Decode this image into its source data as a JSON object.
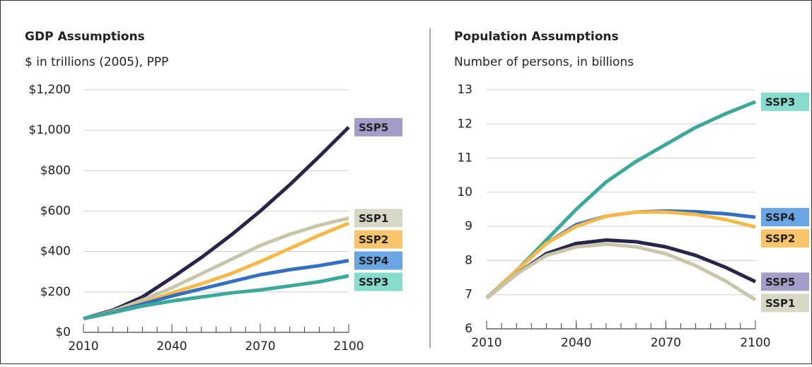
{
  "chart_data": [
    {
      "type": "line",
      "title": "GDP Assumptions",
      "subtitle": "$ in trillions (2005), PPP",
      "x": [
        2010,
        2020,
        2030,
        2040,
        2050,
        2060,
        2070,
        2080,
        2090,
        2100
      ],
      "xlim": [
        2010,
        2100
      ],
      "xticks": [
        2010,
        2040,
        2070,
        2100
      ],
      "ylim": [
        0,
        1200
      ],
      "yticks": [
        {
          "value": 0,
          "label": "$0"
        },
        {
          "value": 200,
          "label": "$200"
        },
        {
          "value": 400,
          "label": "$400"
        },
        {
          "value": 600,
          "label": "$600"
        },
        {
          "value": 800,
          "label": "$800"
        },
        {
          "value": 1000,
          "label": "$1,000"
        },
        {
          "value": 1200,
          "label": "$1,200"
        }
      ],
      "grid": true,
      "series": [
        {
          "name": "SSP5",
          "color": "#27264a",
          "label_color": "#a69cc8",
          "values": [
            68,
            110,
            175,
            270,
            370,
            480,
            600,
            730,
            870,
            1015
          ]
        },
        {
          "name": "SSP1",
          "color": "#c9c5a8",
          "label_color": "#d8d6c4",
          "values": [
            68,
            105,
            160,
            220,
            290,
            360,
            430,
            485,
            530,
            565
          ]
        },
        {
          "name": "SSP2",
          "color": "#f5b94a",
          "label_color": "#f9c56a",
          "values": [
            68,
            100,
            145,
            195,
            240,
            290,
            350,
            415,
            480,
            540
          ]
        },
        {
          "name": "SSP4",
          "color": "#3470c0",
          "label_color": "#6aa6e4",
          "values": [
            68,
            100,
            140,
            180,
            215,
            250,
            285,
            310,
            330,
            355
          ]
        },
        {
          "name": "SSP3",
          "color": "#3aa89a",
          "label_color": "#86dccd",
          "values": [
            68,
            98,
            130,
            155,
            175,
            195,
            210,
            230,
            250,
            280
          ]
        }
      ]
    },
    {
      "type": "line",
      "title": "Population Assumptions",
      "subtitle": "Number of persons, in billions",
      "x": [
        2010,
        2020,
        2030,
        2040,
        2050,
        2060,
        2070,
        2080,
        2090,
        2100
      ],
      "xlim": [
        2010,
        2100
      ],
      "xticks": [
        2010,
        2040,
        2070,
        2100
      ],
      "ylim": [
        6,
        13
      ],
      "yticks": [
        6,
        7,
        8,
        9,
        10,
        11,
        12,
        13
      ],
      "grid": true,
      "series": [
        {
          "name": "SSP3",
          "color": "#3aa89a",
          "label_color": "#86dccd",
          "values": [
            6.9,
            7.7,
            8.6,
            9.5,
            10.3,
            10.9,
            11.4,
            11.9,
            12.3,
            12.65
          ]
        },
        {
          "name": "SSP4",
          "color": "#3470c0",
          "label_color": "#6aa6e4",
          "values": [
            6.9,
            7.7,
            8.5,
            9.05,
            9.3,
            9.42,
            9.45,
            9.43,
            9.37,
            9.27
          ]
        },
        {
          "name": "SSP2",
          "color": "#f5b94a",
          "label_color": "#f9c56a",
          "values": [
            6.9,
            7.7,
            8.5,
            9.0,
            9.3,
            9.42,
            9.42,
            9.35,
            9.2,
            8.98
          ]
        },
        {
          "name": "SSP5",
          "color": "#27264a",
          "label_color": "#a69cc8",
          "values": [
            6.9,
            7.6,
            8.2,
            8.5,
            8.6,
            8.55,
            8.4,
            8.15,
            7.8,
            7.38
          ]
        },
        {
          "name": "SSP1",
          "color": "#c9c5a8",
          "label_color": "#d8d6c4",
          "values": [
            6.9,
            7.6,
            8.15,
            8.4,
            8.48,
            8.4,
            8.2,
            7.85,
            7.4,
            6.85
          ]
        }
      ]
    }
  ]
}
